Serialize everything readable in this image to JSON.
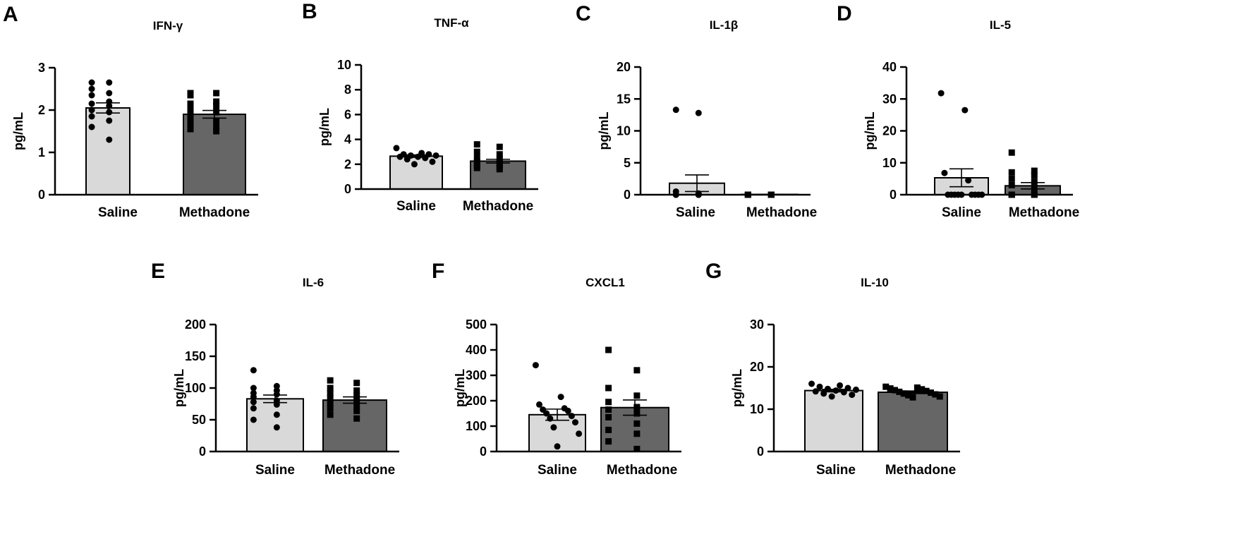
{
  "colors": {
    "saline": "#d9d9d9",
    "methadone": "#666666",
    "outline": "#000000",
    "points": "#000000"
  },
  "chart_data": [
    {
      "panel": "A",
      "type": "bar",
      "title": "IFN-γ",
      "ylabel": "pg/mL",
      "xlabel": "",
      "categories": [
        "Saline",
        "Methadone"
      ],
      "ylim": [
        0,
        3
      ],
      "yticks": [
        0,
        1,
        2,
        3
      ],
      "means": [
        2.05,
        1.9
      ],
      "sem": [
        0.12,
        0.09
      ],
      "points": [
        [
          2.65,
          2.65,
          2.5,
          2.4,
          2.35,
          2.2,
          2.15,
          2.1,
          2.0,
          1.95,
          1.85,
          1.75,
          1.6,
          1.3
        ],
        [
          2.4,
          2.4,
          2.35,
          2.2,
          2.15,
          2.1,
          2.0,
          1.95,
          1.85,
          1.75,
          1.7,
          1.6,
          1.55,
          1.5
        ]
      ],
      "markers": [
        "circle",
        "square"
      ]
    },
    {
      "panel": "B",
      "type": "bar",
      "title": "TNF-α",
      "ylabel": "pg/mL",
      "xlabel": "",
      "categories": [
        "Saline",
        "Methadone"
      ],
      "ylim": [
        0,
        10
      ],
      "yticks": [
        0,
        2,
        4,
        6,
        8,
        10
      ],
      "means": [
        2.65,
        2.25
      ],
      "sem": [
        0.1,
        0.15
      ],
      "points": [
        [
          3.3,
          2.9,
          2.8,
          2.8,
          2.7,
          2.7,
          2.6,
          2.6,
          2.5,
          2.4,
          2.2,
          2.0
        ],
        [
          3.6,
          3.4,
          3.0,
          2.8,
          2.5,
          2.4,
          2.2,
          2.1,
          2.0,
          2.0,
          1.9,
          1.8,
          1.7,
          1.6
        ]
      ],
      "markers": [
        "circle",
        "square"
      ]
    },
    {
      "panel": "C",
      "type": "bar",
      "title": "IL-1β",
      "ylabel": "pg/mL",
      "xlabel": "",
      "categories": [
        "Saline",
        "Methadone"
      ],
      "ylim": [
        0,
        20
      ],
      "yticks": [
        0,
        5,
        10,
        15,
        20
      ],
      "means": [
        1.8,
        0.05
      ],
      "sem": [
        1.3,
        0.03
      ],
      "points": [
        [
          13.3,
          12.8,
          0.5,
          0.2,
          0,
          0,
          0,
          0,
          0,
          0,
          0,
          0,
          0,
          0
        ],
        [
          0,
          0,
          0,
          0,
          0,
          0,
          0,
          0,
          0,
          0,
          0,
          0,
          0,
          0
        ]
      ],
      "markers": [
        "circle",
        "square"
      ]
    },
    {
      "panel": "D",
      "type": "bar",
      "title": "IL-5",
      "ylabel": "pg/mL",
      "xlabel": "",
      "categories": [
        "Saline",
        "Methadone"
      ],
      "ylim": [
        0,
        40
      ],
      "yticks": [
        0,
        10,
        20,
        30,
        40
      ],
      "means": [
        5.3,
        2.8
      ],
      "sem": [
        2.8,
        1.0
      ],
      "points": [
        [
          31.8,
          26.5,
          6.8,
          4.5,
          0,
          0,
          0,
          0,
          0,
          0,
          0,
          0,
          0
        ],
        [
          13.2,
          7.5,
          7.0,
          6.0,
          5.0,
          4.0,
          3.0,
          2.0,
          0,
          0,
          0,
          0,
          0,
          0
        ]
      ],
      "markers": [
        "circle",
        "square"
      ]
    },
    {
      "panel": "E",
      "type": "bar",
      "title": "IL-6",
      "ylabel": "pg/mL",
      "xlabel": "",
      "categories": [
        "Saline",
        "Methadone"
      ],
      "ylim": [
        0,
        200
      ],
      "yticks": [
        0,
        50,
        100,
        150,
        200
      ],
      "means": [
        83,
        81
      ],
      "sem": [
        6,
        5
      ],
      "points": [
        [
          128,
          103,
          100,
          96,
          92,
          90,
          86,
          80,
          78,
          74,
          68,
          58,
          50,
          38
        ],
        [
          112,
          108,
          100,
          96,
          92,
          88,
          84,
          80,
          76,
          72,
          68,
          64,
          58,
          52
        ]
      ],
      "markers": [
        "circle",
        "square"
      ]
    },
    {
      "panel": "F",
      "type": "bar",
      "title": "CXCL1",
      "ylabel": "pg/mL",
      "xlabel": "",
      "categories": [
        "Saline",
        "Methadone"
      ],
      "ylim": [
        0,
        500
      ],
      "yticks": [
        0,
        100,
        200,
        300,
        400,
        500
      ],
      "means": [
        145,
        173
      ],
      "sem": [
        22,
        30
      ],
      "points": [
        [
          340,
          215,
          185,
          170,
          165,
          160,
          150,
          140,
          130,
          115,
          95,
          70,
          20
        ],
        [
          400,
          320,
          250,
          220,
          195,
          175,
          165,
          150,
          135,
          110,
          85,
          70,
          40,
          10
        ]
      ],
      "markers": [
        "circle",
        "square"
      ]
    },
    {
      "panel": "G",
      "type": "bar",
      "title": "IL-10",
      "ylabel": "pg/mL",
      "xlabel": "",
      "categories": [
        "Saline",
        "Methadone"
      ],
      "ylim": [
        0,
        30
      ],
      "yticks": [
        0,
        10,
        20,
        30
      ],
      "means": [
        14.4,
        14.0
      ],
      "sem": [
        0.3,
        0.3
      ],
      "points": [
        [
          16.0,
          15.6,
          15.3,
          15.0,
          14.8,
          14.6,
          14.4,
          14.2,
          14.0,
          13.7,
          13.4,
          13.0
        ],
        [
          15.3,
          15.1,
          14.9,
          14.7,
          14.5,
          14.3,
          14.1,
          13.9,
          13.7,
          13.5,
          13.3,
          13.0,
          12.8
        ]
      ],
      "markers": [
        "circle",
        "square"
      ]
    }
  ]
}
